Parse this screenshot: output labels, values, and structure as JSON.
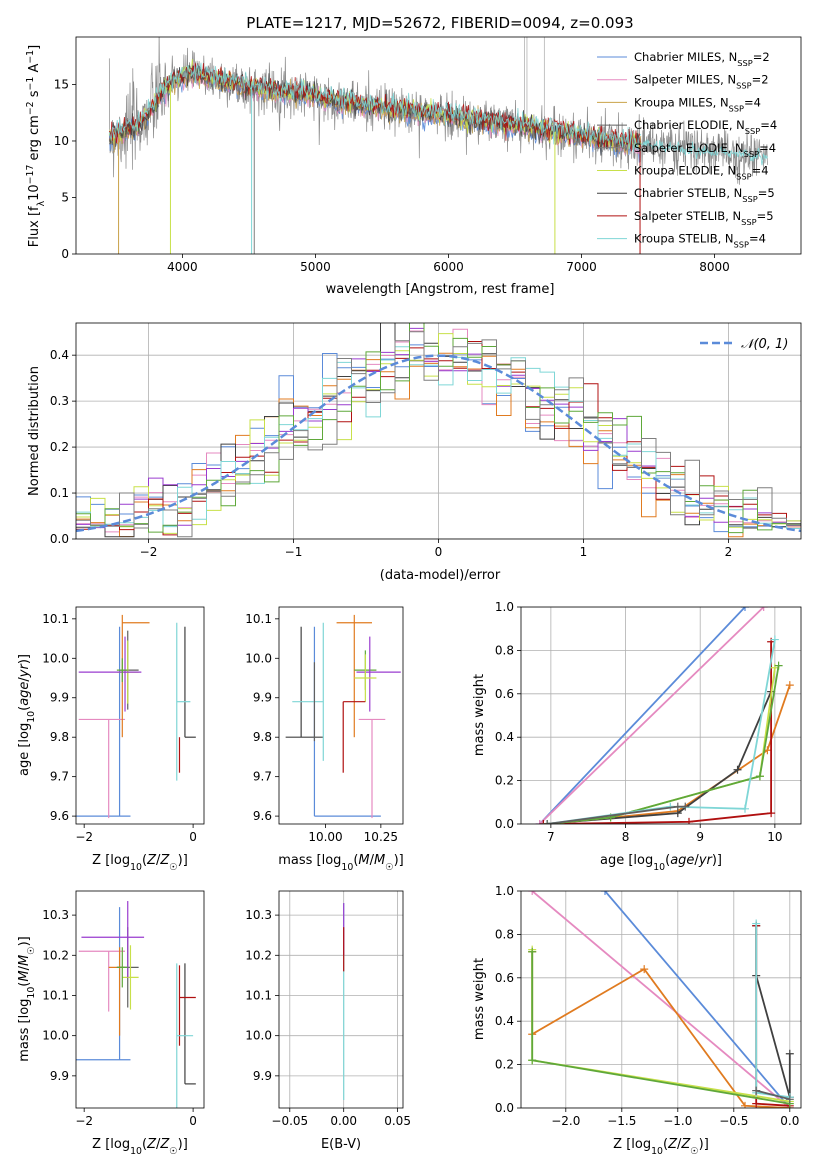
{
  "figure_title": "PLATE=1217, MJD=52672, FIBERID=0094, z=0.093",
  "colors": {
    "chabrier_miles": "#5b8bd9",
    "salpeter_miles": "#e58ac0",
    "kroupa_miles": "#c9a24a",
    "chabrier_elodie": "#606060",
    "salpeter_elodie": "#7f7f7f",
    "kroupa_elodie": "#c8e04a",
    "chabrier_stelib": "#404040",
    "salpeter_stelib": "#b01010",
    "kroupa_stelib": "#7fd6d6",
    "orange": "#e07b20",
    "purple": "#9a3ccf",
    "green": "#5fa83a",
    "gauss": "#5b8bd9",
    "grid": "#b0b0b0"
  },
  "chart_data": [
    {
      "id": "spectrum",
      "type": "line",
      "title": "PLATE=1217, MJD=52672, FIBERID=0094, z=0.093",
      "xlabel": "wavelength [Angstrom, rest frame]",
      "ylabel": "Flux [f_λ 10^-17 erg cm^-2 s^-1 A^-1]",
      "xlim": [
        3200,
        8650
      ],
      "ylim": [
        0,
        19.2
      ],
      "xticks": [
        4000,
        5000,
        6000,
        7000,
        8000
      ],
      "yticks": [
        0,
        5,
        10,
        15
      ],
      "grid": false,
      "legend_position": "top-right",
      "legend": [
        {
          "name": "Chabrier MILES, N_SSP=2",
          "color": "#5b8bd9"
        },
        {
          "name": "Salpeter MILES, N_SSP=2",
          "color": "#e58ac0"
        },
        {
          "name": "Kroupa MILES, N_SSP=4",
          "color": "#c9a24a"
        },
        {
          "name": "Chabrier ELODIE, N_SSP=4",
          "color": "#606060"
        },
        {
          "name": "Salpeter ELODIE, N_SSP=4",
          "color": "#7f7f7f"
        },
        {
          "name": "Kroupa ELODIE, N_SSP=4",
          "color": "#c8e04a"
        },
        {
          "name": "Chabrier STELIB, N_SSP=5",
          "color": "#404040"
        },
        {
          "name": "Salpeter STELIB, N_SSP=5",
          "color": "#b01010"
        },
        {
          "name": "Kroupa STELIB, N_SSP=4",
          "color": "#7fd6d6"
        }
      ],
      "continuum": {
        "x": [
          3450,
          3550,
          3650,
          3750,
          3850,
          3950,
          4050,
          4150,
          4300,
          4500,
          4700,
          4900,
          5100,
          5300,
          5500,
          5700,
          5900,
          6100,
          6300,
          6500,
          6700,
          6900,
          7100,
          7300,
          7450
        ],
        "y": [
          10.3,
          10.8,
          11.3,
          12.5,
          14.5,
          15.3,
          16.0,
          15.8,
          15.3,
          14.8,
          14.4,
          14.3,
          13.7,
          13.3,
          12.9,
          12.6,
          12.4,
          12.0,
          11.7,
          11.4,
          11.0,
          10.6,
          10.2,
          9.9,
          9.7
        ]
      },
      "data_x_range": [
        3450,
        8400
      ],
      "dips": [
        {
          "series": "Kroupa ELODIE",
          "x": 3910,
          "y": 0
        },
        {
          "series": "Kroupa STELIB",
          "x": 4520,
          "y": 0
        },
        {
          "series": "Salpeter ELODIE",
          "x": 4540,
          "y": 0
        },
        {
          "series": "Kroupa ELODIE",
          "x": 6800,
          "y": 0
        },
        {
          "series": "Salpeter STELIB",
          "x": 7440,
          "y": 0
        },
        {
          "series": "Kroupa MILES",
          "x": 3520,
          "y": 0
        }
      ]
    },
    {
      "id": "residuals",
      "type": "histogram",
      "xlabel": "(data-model)/error",
      "ylabel": "Normed distribution",
      "xlim": [
        -2.5,
        2.5
      ],
      "ylim": [
        0,
        0.47
      ],
      "xticks": [
        -2,
        -1,
        0,
        1,
        2
      ],
      "yticks": [
        0,
        0.1,
        0.2,
        0.3,
        0.4
      ],
      "grid": true,
      "legend_position": "top-right",
      "legend": [
        {
          "name": "𝒩(0, 1)",
          "color": "#5b8bd9",
          "style": "dashed"
        }
      ],
      "bin_width": 0.1,
      "reference_curve": {
        "name": "𝒩(0, 1)",
        "mean": 0,
        "sigma": 1
      }
    },
    {
      "id": "age_vs_Z",
      "type": "errorbar",
      "xlabel": "Z [log10(Z/Z☉)]",
      "ylabel": "age [log10(age/yr)]",
      "xlim": [
        -2.15,
        0.2
      ],
      "ylim": [
        9.58,
        10.13
      ],
      "xticks": [
        -2,
        0
      ],
      "yticks": [
        9.6,
        9.7,
        9.8,
        9.9,
        10.0,
        10.1
      ],
      "grid": false,
      "points": [
        {
          "x": -1.35,
          "y": 9.6,
          "xerr": [
            0.8,
            0.2
          ],
          "yerr": [
            0,
            0.48
          ],
          "color": "#5b8bd9"
        },
        {
          "x": -1.55,
          "y": 9.845,
          "xerr": [
            0.55,
            0.3
          ],
          "yerr": [
            0.25,
            0.0
          ],
          "color": "#e58ac0"
        },
        {
          "x": -1.3,
          "y": 10.09,
          "xerr": [
            0,
            0.5
          ],
          "yerr": [
            0.29,
            0.02
          ],
          "color": "#e07b20"
        },
        {
          "x": -1.2,
          "y": 9.97,
          "xerr": [
            0.15,
            0.2
          ],
          "yerr": [
            0.1,
            0.1
          ],
          "color": "#606060"
        },
        {
          "x": -1.2,
          "y": 9.965,
          "xerr": [
            0.2,
            0.2
          ],
          "yerr": [
            0.08,
            0.08
          ],
          "color": "#c8e04a"
        },
        {
          "x": -1.25,
          "y": 9.965,
          "xerr": [
            0.85,
            0.3
          ],
          "yerr": [
            0.1,
            0.09
          ],
          "color": "#9a3ccf"
        },
        {
          "x": -0.15,
          "y": 9.8,
          "xerr": [
            0,
            0.2
          ],
          "yerr": [
            0.0,
            0.28
          ],
          "color": "#404040"
        },
        {
          "x": -0.25,
          "y": 9.8,
          "xerr": [
            0,
            0.0
          ],
          "yerr": [
            0.09,
            0.0
          ],
          "color": "#b01010"
        },
        {
          "x": -0.3,
          "y": 9.89,
          "xerr": [
            0,
            0.25
          ],
          "yerr": [
            0.2,
            0.2
          ],
          "color": "#7fd6d6"
        },
        {
          "x": -1.3,
          "y": 9.97,
          "xerr": [
            0.1,
            0.1
          ],
          "yerr": [
            0.03,
            0.03
          ],
          "color": "#5fa83a"
        }
      ]
    },
    {
      "id": "age_vs_mass",
      "type": "errorbar",
      "xlabel": "mass [log10(M/M☉)]",
      "ylabel": "",
      "xlim": [
        9.79,
        10.35
      ],
      "ylim": [
        9.58,
        10.13
      ],
      "xticks": [
        10.0,
        10.25
      ],
      "yticks": [
        9.6,
        9.7,
        9.8,
        9.9,
        10.0,
        10.1
      ],
      "grid": false,
      "points": [
        {
          "x": 9.95,
          "y": 9.6,
          "xerr": [
            0,
            0.3
          ],
          "yerr": [
            0,
            0.48
          ],
          "color": "#5b8bd9"
        },
        {
          "x": 10.21,
          "y": 9.845,
          "xerr": [
            0.06,
            0.06
          ],
          "yerr": [
            0.25,
            0.0
          ],
          "color": "#e58ac0"
        },
        {
          "x": 10.13,
          "y": 10.09,
          "xerr": [
            0.08,
            0.08
          ],
          "yerr": [
            0.29,
            0.02
          ],
          "color": "#e07b20"
        },
        {
          "x": 9.89,
          "y": 9.8,
          "xerr": [
            0.07,
            0.1
          ],
          "yerr": [
            0,
            0.28
          ],
          "color": "#404040"
        },
        {
          "x": 10.18,
          "y": 9.97,
          "xerr": [
            0.05,
            0.05
          ],
          "yerr": [
            0.05,
            0.05
          ],
          "color": "#5fa83a"
        },
        {
          "x": 10.2,
          "y": 9.965,
          "xerr": [
            0.06,
            0.14
          ],
          "yerr": [
            0.1,
            0.09
          ],
          "color": "#9a3ccf"
        },
        {
          "x": 10.18,
          "y": 9.95,
          "xerr": [
            0.05,
            0.05
          ],
          "yerr": [
            0.06,
            0.06
          ],
          "color": "#c8e04a"
        },
        {
          "x": 10.08,
          "y": 9.89,
          "xerr": [
            0,
            0.1
          ],
          "yerr": [
            0.18,
            0.0
          ],
          "color": "#b01010"
        },
        {
          "x": 9.99,
          "y": 9.89,
          "xerr": [
            0.14,
            0.0
          ],
          "yerr": [
            0.15,
            0.2
          ],
          "color": "#7fd6d6"
        },
        {
          "x": 9.95,
          "y": 9.89,
          "xerr": [
            0,
            0
          ],
          "yerr": [
            0.1,
            0.1
          ],
          "color": "#606060"
        }
      ]
    },
    {
      "id": "massweight_vs_age",
      "type": "line",
      "xlabel": "age [log10(age/yr)]",
      "ylabel": "mass weight",
      "xlim": [
        6.6,
        10.35
      ],
      "ylim": [
        0,
        1.0
      ],
      "xticks": [
        7,
        8,
        9,
        10
      ],
      "yticks": [
        0.0,
        0.2,
        0.4,
        0.6,
        0.8,
        1.0
      ],
      "grid": true,
      "series": [
        {
          "color": "#5b8bd9",
          "x": [
            6.85,
            9.6
          ],
          "y": [
            0.0,
            1.0
          ]
        },
        {
          "color": "#e58ac0",
          "x": [
            6.85,
            9.85
          ],
          "y": [
            0.0,
            1.0
          ]
        },
        {
          "color": "#e07b20",
          "x": [
            6.95,
            8.7,
            9.9,
            10.2
          ],
          "y": [
            0.0,
            0.06,
            0.34,
            0.64
          ]
        },
        {
          "color": "#404040",
          "x": [
            6.9,
            8.7,
            9.5,
            9.95
          ],
          "y": [
            0.0,
            0.05,
            0.25,
            0.61
          ]
        },
        {
          "color": "#b01010",
          "x": [
            6.9,
            8.85,
            9.95,
            9.95
          ],
          "y": [
            0.0,
            0.01,
            0.05,
            0.84
          ]
        },
        {
          "color": "#c8e04a",
          "x": [
            6.95,
            7.8,
            9.8,
            10.0
          ],
          "y": [
            0.0,
            0.03,
            0.22,
            0.72
          ]
        },
        {
          "color": "#5fa83a",
          "x": [
            6.95,
            7.8,
            9.8,
            10.05
          ],
          "y": [
            0.0,
            0.03,
            0.22,
            0.73
          ]
        },
        {
          "color": "#7fd6d6",
          "x": [
            6.95,
            8.6,
            9.6,
            10.0
          ],
          "y": [
            0.0,
            0.08,
            0.07,
            0.85
          ]
        },
        {
          "color": "#606060",
          "x": [
            6.95,
            8.7,
            8.8
          ],
          "y": [
            0.0,
            0.08,
            0.08
          ]
        }
      ]
    },
    {
      "id": "mass_vs_Z",
      "type": "errorbar",
      "xlabel": "Z [log10(Z/Z☉)]",
      "ylabel": "mass [log10(M/M☉)]",
      "xlim": [
        -2.15,
        0.2
      ],
      "ylim": [
        9.82,
        10.36
      ],
      "xticks": [
        -2,
        0
      ],
      "yticks": [
        9.9,
        10.0,
        10.1,
        10.2,
        10.3
      ],
      "grid": false,
      "points": [
        {
          "x": -1.35,
          "y": 9.94,
          "xerr": [
            0.8,
            0.2
          ],
          "yerr": [
            0,
            0.38
          ],
          "color": "#5b8bd9"
        },
        {
          "x": -1.55,
          "y": 10.21,
          "xerr": [
            0.55,
            0.3
          ],
          "yerr": [
            0.15,
            0.0
          ],
          "color": "#e58ac0"
        },
        {
          "x": -1.35,
          "y": 10.17,
          "xerr": [
            0.2,
            0.1
          ],
          "yerr": [
            0.17,
            0.05
          ],
          "color": "#e07b20"
        },
        {
          "x": -1.2,
          "y": 10.17,
          "xerr": [
            0.2,
            0.2
          ],
          "yerr": [
            0.1,
            0.1
          ],
          "color": "#606060"
        },
        {
          "x": -1.15,
          "y": 10.145,
          "xerr": [
            0.15,
            0.15
          ],
          "yerr": [
            0.08,
            0.08
          ],
          "color": "#c8e04a"
        },
        {
          "x": -1.2,
          "y": 10.245,
          "xerr": [
            0.85,
            0.3
          ],
          "yerr": [
            0.1,
            0.09
          ],
          "color": "#9a3ccf"
        },
        {
          "x": -0.15,
          "y": 9.88,
          "xerr": [
            0,
            0.2
          ],
          "yerr": [
            0.0,
            0.3
          ],
          "color": "#404040"
        },
        {
          "x": -0.25,
          "y": 10.095,
          "xerr": [
            0,
            0.3
          ],
          "yerr": [
            0.12,
            0.08
          ],
          "color": "#b01010"
        },
        {
          "x": -0.3,
          "y": 10.0,
          "xerr": [
            0,
            0.3
          ],
          "yerr": [
            0.18,
            0.18
          ],
          "color": "#7fd6d6"
        },
        {
          "x": -1.3,
          "y": 10.17,
          "xerr": [
            0.1,
            0.1
          ],
          "yerr": [
            0.05,
            0.05
          ],
          "color": "#5fa83a"
        }
      ]
    },
    {
      "id": "mass_vs_EBV",
      "type": "errorbar",
      "xlabel": "E(B-V)",
      "ylabel": "",
      "xlim": [
        -0.06,
        0.055
      ],
      "ylim": [
        9.82,
        10.36
      ],
      "xticks": [
        -0.05,
        0.0,
        0.05
      ],
      "xticklabels": [
        "−0.05",
        "0.00",
        "0.05"
      ],
      "yticks": [
        9.9,
        10.0,
        10.1,
        10.2,
        10.3
      ],
      "grid": true,
      "points": [
        {
          "x": 0.0,
          "y": 10.15,
          "xerr": [
            0,
            0
          ],
          "yerr": [
            0.31,
            0.18
          ],
          "color": "#7fd6d6"
        },
        {
          "x": 0.0,
          "y": 10.25,
          "xerr": [
            0,
            0
          ],
          "yerr": [
            0.05,
            0.08
          ],
          "color": "#9a3ccf"
        },
        {
          "x": 0.0,
          "y": 10.2,
          "xerr": [
            0,
            0
          ],
          "yerr": [
            0.04,
            0.07
          ],
          "color": "#b01010"
        }
      ]
    },
    {
      "id": "massweight_vs_Z",
      "type": "line",
      "xlabel": "Z [log10(Z/Z☉)]",
      "ylabel": "mass weight",
      "xlim": [
        -2.4,
        0.1
      ],
      "ylim": [
        0,
        1.0
      ],
      "xticks": [
        -2.0,
        -1.5,
        -1.0,
        -0.5,
        0.0
      ],
      "xticklabels": [
        "−2.0",
        "−1.5",
        "−1.0",
        "−0.5",
        "0.0"
      ],
      "yticks": [
        0.0,
        0.2,
        0.4,
        0.6,
        0.8,
        1.0
      ],
      "grid": true,
      "series": [
        {
          "color": "#5b8bd9",
          "x": [
            -1.65,
            0.0
          ],
          "y": [
            1.0,
            0.0
          ]
        },
        {
          "color": "#e58ac0",
          "x": [
            -2.3,
            0.0
          ],
          "y": [
            1.0,
            0.0
          ]
        },
        {
          "color": "#e07b20",
          "x": [
            -2.3,
            -2.3,
            -1.3,
            -0.4,
            0.0
          ],
          "y": [
            0.72,
            0.34,
            0.64,
            0.01,
            0.0
          ]
        },
        {
          "color": "#404040",
          "x": [
            -0.3,
            -0.3,
            0.0,
            0.0
          ],
          "y": [
            0.84,
            0.61,
            0.05,
            0.25
          ]
        },
        {
          "color": "#b01010",
          "x": [
            -0.3,
            -0.3,
            -0.3,
            0.0
          ],
          "y": [
            0.84,
            0.05,
            0.02,
            0.01
          ]
        },
        {
          "color": "#c8e04a",
          "x": [
            -2.3,
            -2.3,
            0.0
          ],
          "y": [
            0.73,
            0.22,
            0.03
          ]
        },
        {
          "color": "#5fa83a",
          "x": [
            -2.3,
            -2.3,
            0.0
          ],
          "y": [
            0.72,
            0.22,
            0.02
          ]
        },
        {
          "color": "#7fd6d6",
          "x": [
            -0.3,
            -0.3,
            0.0
          ],
          "y": [
            0.85,
            0.07,
            0.05
          ]
        },
        {
          "color": "#606060",
          "x": [
            -0.3,
            0.0
          ],
          "y": [
            0.08,
            0.04
          ]
        }
      ]
    }
  ]
}
